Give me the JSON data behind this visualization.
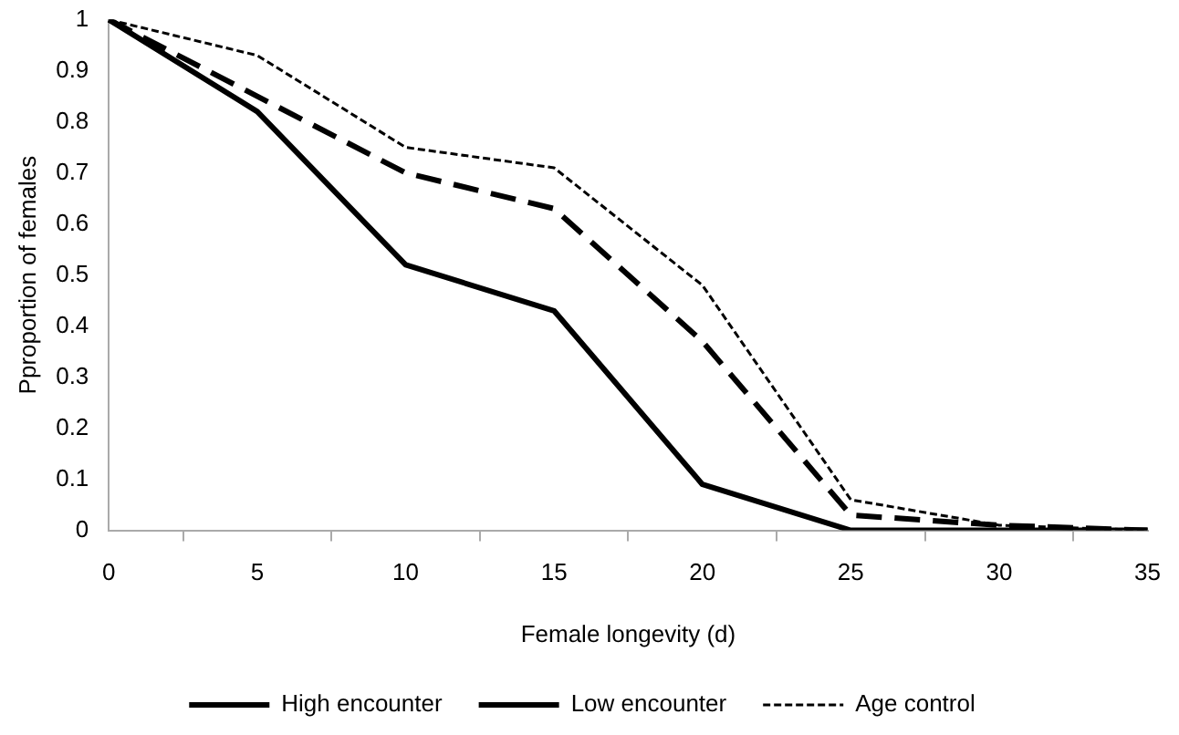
{
  "chart_data": {
    "type": "line",
    "xlabel": "Female longevity (d)",
    "ylabel": "Pproportion of females",
    "categories": [
      "0",
      "5",
      "10",
      "15",
      "20",
      "25",
      "30",
      "35"
    ],
    "ylim": [
      0,
      1
    ],
    "yticks": [
      0,
      0.1,
      0.2,
      0.3,
      0.4,
      0.5,
      0.6,
      0.7,
      0.8,
      0.9,
      1
    ],
    "grid": false,
    "legend": "bottom",
    "marker": "none",
    "series": [
      {
        "name": "High encounter",
        "color": "#000000",
        "line_style": "dashed",
        "values": [
          1,
          0.85,
          0.7,
          0.63,
          0.37,
          0.03,
          0.01,
          0
        ]
      },
      {
        "name": "Low encounter",
        "color": "#000000",
        "line_style": "solid",
        "values": [
          1,
          0.82,
          0.52,
          0.43,
          0.09,
          0,
          0,
          0
        ]
      },
      {
        "name": "Age control",
        "color": "#000000",
        "line_style": "dotted",
        "values": [
          1,
          0.93,
          0.75,
          0.71,
          0.48,
          0.06,
          0.01,
          0
        ]
      }
    ]
  }
}
